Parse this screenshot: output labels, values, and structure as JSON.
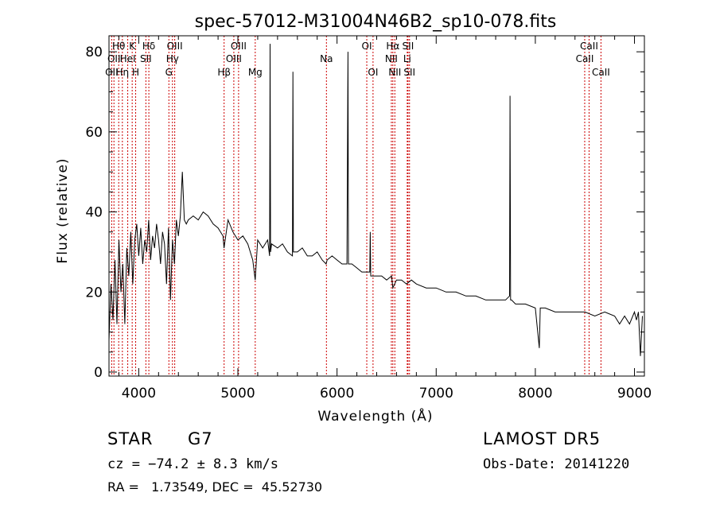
{
  "chart_data": {
    "type": "line",
    "title": "spec-57012-M31004N46B2_sp10-078.fits",
    "xlabel": "Wavelength (Å)",
    "ylabel": "Flux (relative)",
    "xlim": [
      3700,
      9100
    ],
    "ylim": [
      -1,
      84
    ],
    "x_ticks": [
      4000,
      5000,
      6000,
      7000,
      8000,
      9000
    ],
    "x_tick_labels": [
      "4000",
      "5000",
      "6000",
      "7000",
      "8000",
      "9000"
    ],
    "y_ticks": [
      0,
      20,
      40,
      60,
      80
    ],
    "y_tick_labels": [
      "0",
      "20",
      "40",
      "60",
      "80"
    ],
    "grid": false,
    "series": [
      {
        "x": [
          3700,
          3720,
          3740,
          3760,
          3780,
          3800,
          3820,
          3840,
          3860,
          3880,
          3900,
          3920,
          3940,
          3960,
          3980,
          4000,
          4020,
          4040,
          4060,
          4080,
          4100,
          4120,
          4140,
          4160,
          4180,
          4200,
          4220,
          4240,
          4260,
          4280,
          4300,
          4320,
          4340,
          4360,
          4380,
          4400,
          4420,
          4440,
          4460,
          4480,
          4500,
          4550,
          4600,
          4650,
          4700,
          4750,
          4800,
          4850,
          4860,
          4900,
          4950,
          5000,
          5050,
          5100,
          5150,
          5175,
          5200,
          5250,
          5300,
          5320,
          5325,
          5330,
          5340,
          5400,
          5450,
          5500,
          5550,
          5555,
          5560,
          5600,
          5650,
          5700,
          5750,
          5800,
          5850,
          5890,
          5900,
          5950,
          6000,
          6050,
          6100,
          6110,
          6115,
          6120,
          6150,
          6200,
          6250,
          6300,
          6330,
          6335,
          6340,
          6400,
          6450,
          6500,
          6550,
          6563,
          6600,
          6650,
          6700,
          6750,
          6800,
          6900,
          7000,
          7100,
          7200,
          7300,
          7400,
          7500,
          7600,
          7700,
          7740,
          7745,
          7750,
          7760,
          7800,
          7900,
          8000,
          8040,
          8050,
          8060,
          8100,
          8200,
          8300,
          8400,
          8500,
          8600,
          8700,
          8800,
          8850,
          8900,
          8950,
          9000,
          9020,
          9040,
          9060,
          9080
        ],
        "y": [
          8,
          22,
          13,
          28,
          12,
          33,
          20,
          27,
          12,
          31,
          24,
          35,
          22,
          33,
          37,
          29,
          36,
          27,
          33,
          30,
          38,
          28,
          34,
          31,
          37,
          33,
          27,
          35,
          32,
          22,
          36,
          18,
          33,
          27,
          38,
          34,
          39,
          50,
          38,
          37,
          38,
          39,
          38,
          40,
          39,
          37,
          36,
          34,
          31,
          38,
          35,
          33,
          34,
          32,
          28,
          23,
          33,
          31,
          33,
          29,
          82,
          30,
          32,
          31,
          32,
          30,
          29,
          75,
          30,
          30,
          31,
          29,
          29,
          30,
          28,
          27,
          28,
          29,
          28,
          27,
          27,
          80,
          27,
          27,
          27,
          26,
          25,
          25,
          25,
          35,
          24,
          24,
          24,
          23,
          24,
          21,
          23,
          23,
          22,
          23,
          22,
          21,
          21,
          20,
          20,
          19,
          19,
          18,
          18,
          18,
          19,
          69,
          18,
          18,
          17,
          17,
          16,
          6,
          16,
          16,
          16,
          15,
          15,
          15,
          15,
          14,
          15,
          14,
          12,
          14,
          12,
          15,
          13,
          15,
          4,
          14
        ]
      }
    ],
    "annotations": [
      {
        "wavelength": 3727,
        "labels": [
          "OII"
        ],
        "row": 2
      },
      {
        "wavelength": 3750,
        "labels": [
          "OII"
        ],
        "row": 1
      },
      {
        "wavelength": 3798,
        "labels": [
          "Hθ"
        ],
        "row": 0
      },
      {
        "wavelength": 3835,
        "labels": [
          "Hη"
        ],
        "row": 2
      },
      {
        "wavelength": 3889,
        "labels": [
          "HeI"
        ],
        "row": 1
      },
      {
        "wavelength": 3934,
        "labels": [
          "K"
        ],
        "row": 0
      },
      {
        "wavelength": 3969,
        "labels": [
          "H"
        ],
        "row": 2
      },
      {
        "wavelength": 4072,
        "labels": [
          "SII"
        ],
        "row": 1
      },
      {
        "wavelength": 4102,
        "labels": [
          "Hδ"
        ],
        "row": 0
      },
      {
        "wavelength": 4304,
        "labels": [
          "G"
        ],
        "row": 2
      },
      {
        "wavelength": 4340,
        "labels": [
          "Hγ"
        ],
        "row": 1
      },
      {
        "wavelength": 4363,
        "labels": [
          "OIII"
        ],
        "row": 0
      },
      {
        "wavelength": 4861,
        "labels": [
          "Hβ"
        ],
        "row": 2
      },
      {
        "wavelength": 4959,
        "labels": [
          "OIII"
        ],
        "row": 1
      },
      {
        "wavelength": 5007,
        "labels": [
          "OIII"
        ],
        "row": 0
      },
      {
        "wavelength": 5175,
        "labels": [
          "Mg"
        ],
        "row": 2
      },
      {
        "wavelength": 5893,
        "labels": [
          "Na"
        ],
        "row": 1
      },
      {
        "wavelength": 6300,
        "labels": [
          "OI"
        ],
        "row": 0
      },
      {
        "wavelength": 6363,
        "labels": [
          "OI"
        ],
        "row": 2
      },
      {
        "wavelength": 6548,
        "labels": [
          "NII"
        ],
        "row": 1
      },
      {
        "wavelength": 6563,
        "labels": [
          "Hα"
        ],
        "row": 0
      },
      {
        "wavelength": 6583,
        "labels": [
          "NII"
        ],
        "row": 2
      },
      {
        "wavelength": 6708,
        "labels": [
          "Li"
        ],
        "row": 1
      },
      {
        "wavelength": 6716,
        "labels": [
          "SII"
        ],
        "row": 0
      },
      {
        "wavelength": 6731,
        "labels": [
          "SII"
        ],
        "row": 2
      },
      {
        "wavelength": 8498,
        "labels": [
          "CaII"
        ],
        "row": 1
      },
      {
        "wavelength": 8542,
        "labels": [
          "CaII"
        ],
        "row": 0
      },
      {
        "wavelength": 8662,
        "labels": [
          "CaII"
        ],
        "row": 2
      }
    ]
  },
  "info": {
    "object_class": "STAR",
    "subclass": "G7",
    "survey": "LAMOST DR5",
    "velocity": "cz = −74.2 ± 8.3 km/s",
    "obs_date": "Obs-Date: 20141220",
    "coords": "RA =   1.73549, DEC =  45.52730"
  },
  "colors": {
    "line": "#000000",
    "marker_line": "#cc0000",
    "axes": "#000000",
    "background": "#ffffff"
  }
}
